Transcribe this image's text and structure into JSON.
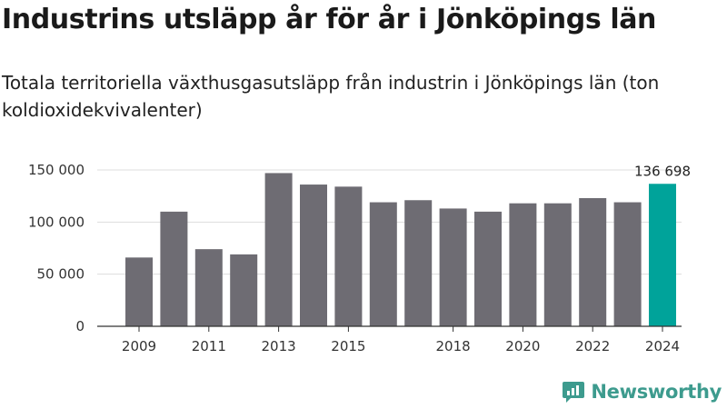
{
  "chart_data": {
    "type": "bar",
    "title": "Industrins utsläpp år för år i Jönköpings län",
    "subtitle": "Totala territoriella växthusgasutsläpp från industrin i Jönköpings län (ton koldioxidekvivalenter)",
    "categories": [
      "2009",
      "2010",
      "2011",
      "2012",
      "2013",
      "2014",
      "2015",
      "2016",
      "2017",
      "2018",
      "2019",
      "2020",
      "2021",
      "2022",
      "2023",
      "2024"
    ],
    "values": [
      66000,
      110000,
      74000,
      69000,
      147000,
      136000,
      134000,
      119000,
      121000,
      113000,
      110000,
      118000,
      118000,
      123000,
      119000,
      136698
    ],
    "x_tick_labels": [
      "2009",
      "2011",
      "2013",
      "2015",
      "2018",
      "2020",
      "2022",
      "2024"
    ],
    "ylim": [
      0,
      150000
    ],
    "y_ticks": [
      0,
      50000,
      100000,
      150000
    ],
    "y_tick_labels": [
      "0",
      "50 000",
      "100 000",
      "150 000"
    ],
    "highlight_index": 15,
    "highlight_label": "136 698",
    "grid": true,
    "xlabel": "",
    "ylabel": "",
    "colors": {
      "bar": "#6e6c73",
      "highlight": "#00a39a",
      "grid": "#dddddd",
      "axis": "#333333"
    }
  },
  "brand": {
    "name": "Newsworthy",
    "icon": "newsworthy-logo-icon",
    "color": "#3d9b8e"
  }
}
